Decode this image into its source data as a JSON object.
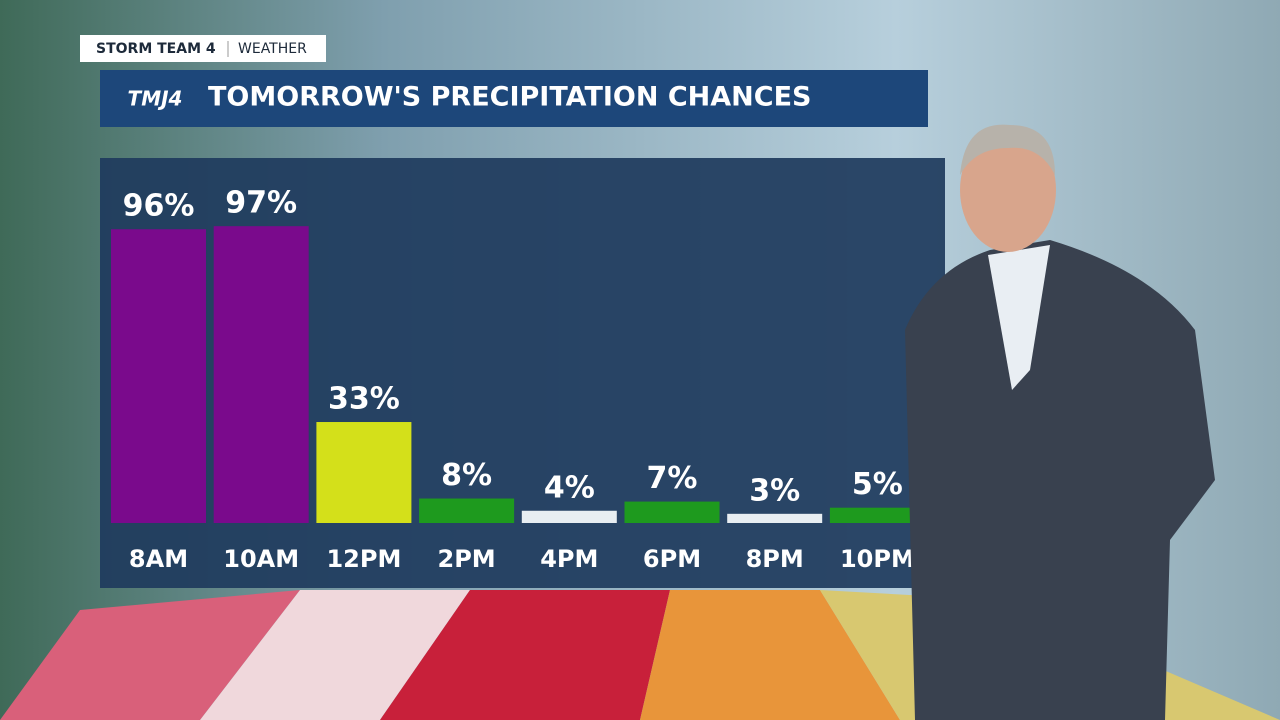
{
  "header": {
    "team": "STORM TEAM 4",
    "section": "WEATHER",
    "logo": "TMJ4"
  },
  "chart_data": {
    "type": "bar",
    "title": "TOMORROW'S PRECIPITATION CHANCES",
    "categories": [
      "8AM",
      "10AM",
      "12PM",
      "2PM",
      "4PM",
      "6PM",
      "8PM",
      "10PM"
    ],
    "values": [
      96,
      97,
      33,
      8,
      4,
      7,
      3,
      5
    ],
    "value_labels": [
      "96%",
      "97%",
      "33%",
      "8%",
      "4%",
      "7%",
      "3%",
      "5%"
    ],
    "colors": [
      "#7a0a8c",
      "#7a0a8c",
      "#d4e01a",
      "#1e9a1e",
      "#e8eef2",
      "#1e9a1e",
      "#e8eef2",
      "#1e9a1e"
    ]
  }
}
